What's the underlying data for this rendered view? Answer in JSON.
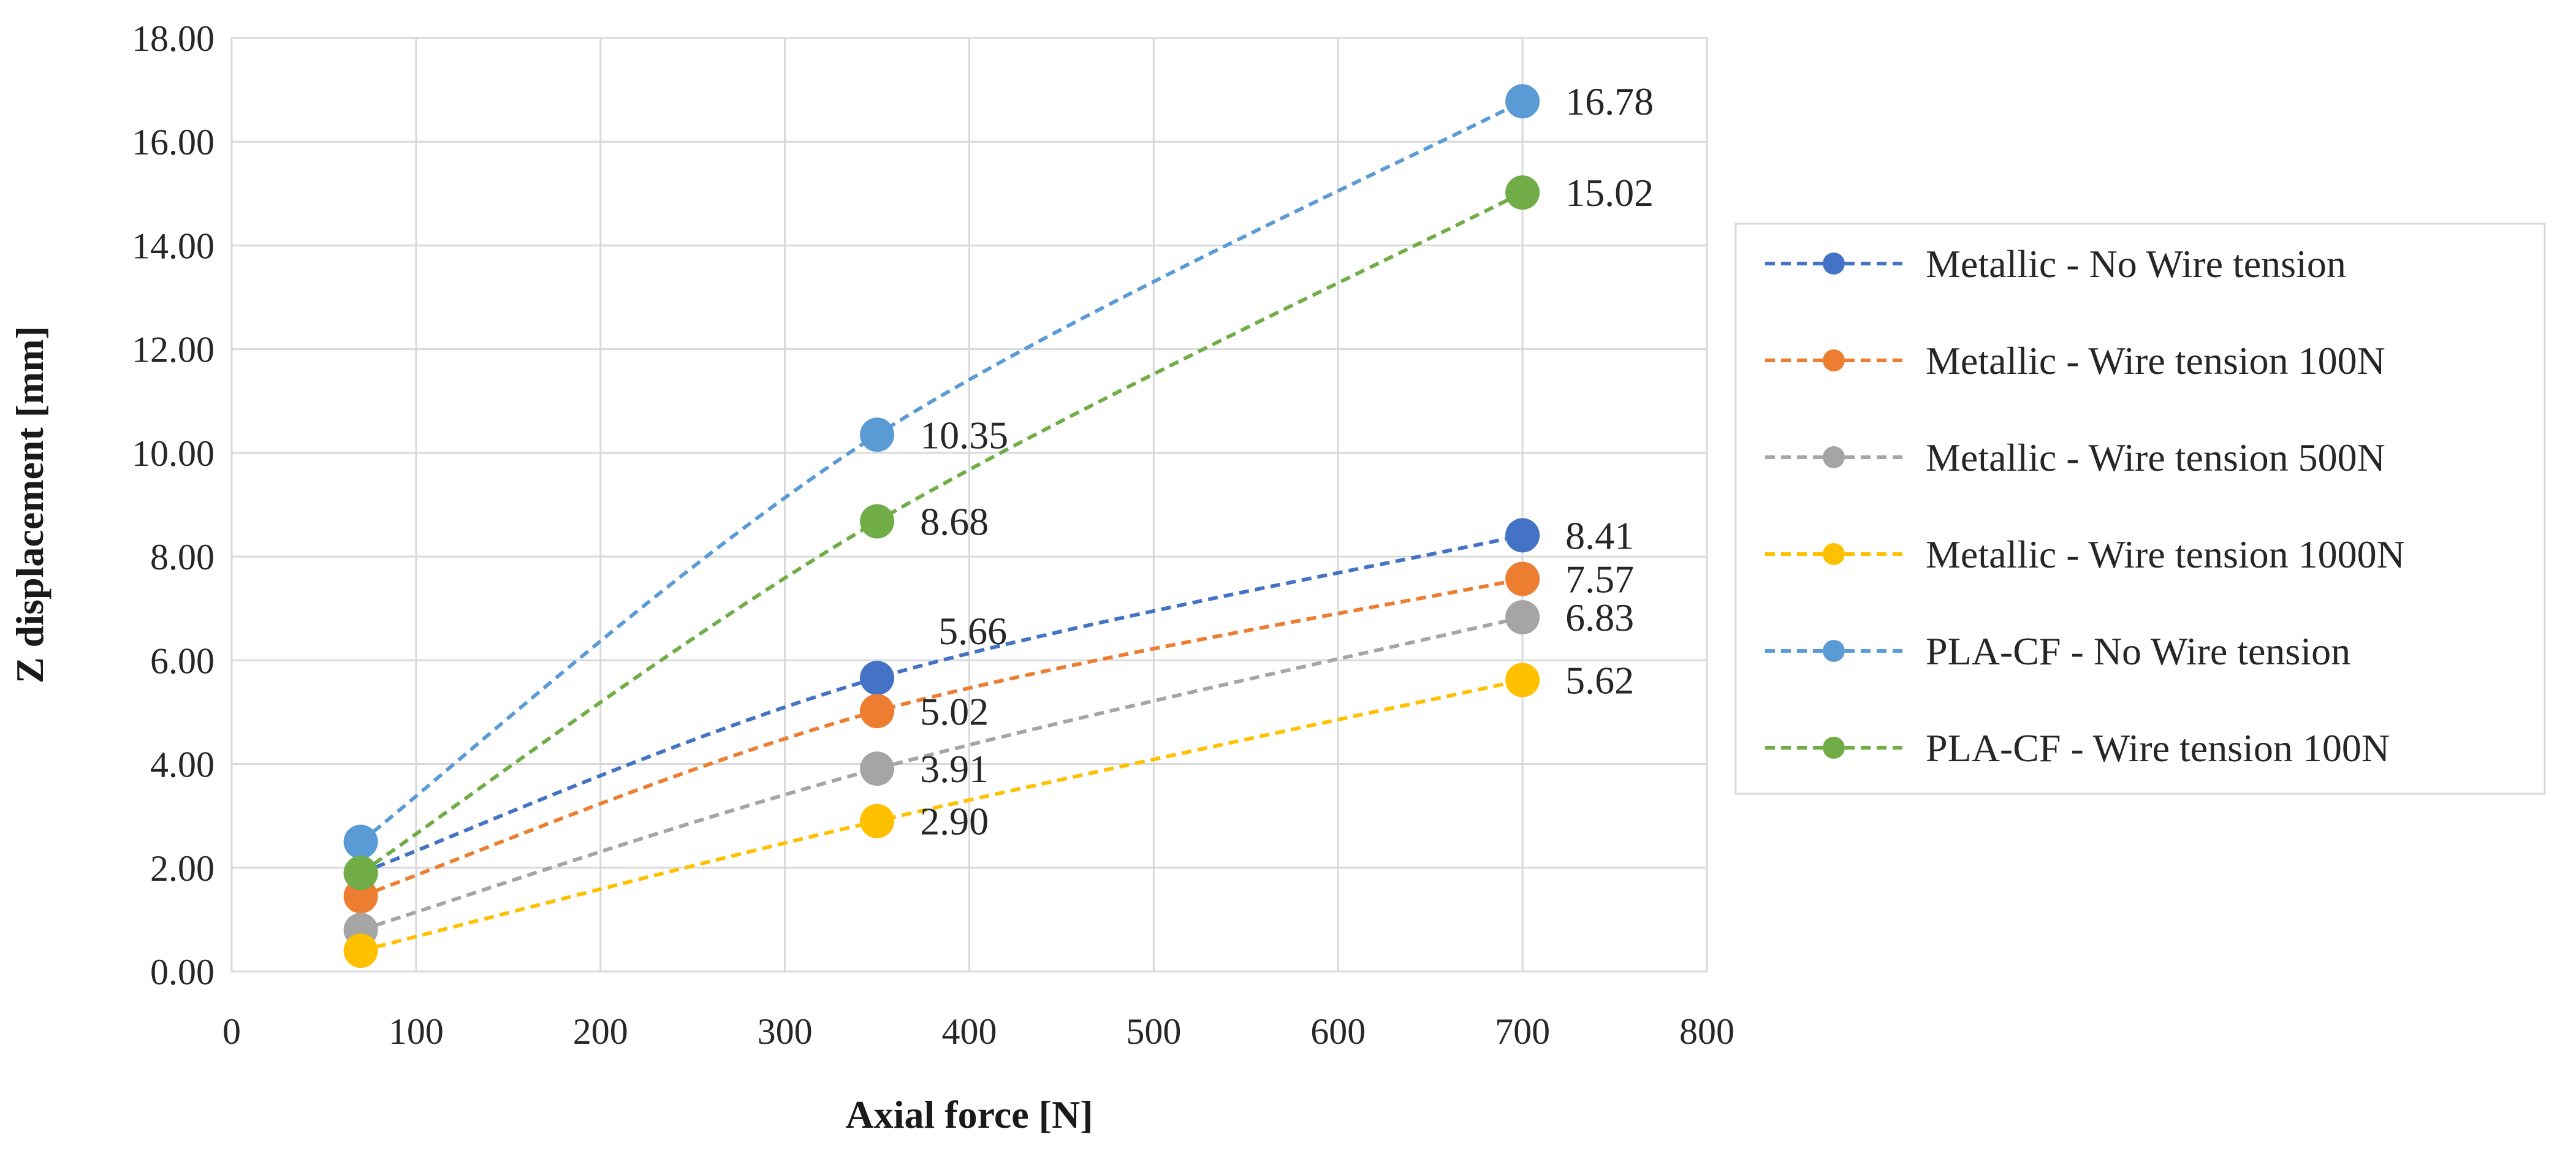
{
  "chart_data": {
    "type": "line",
    "title": "",
    "xlabel": "Axial force [N]",
    "ylabel": "Z displacement [mm]",
    "xlim": [
      0,
      800
    ],
    "ylim": [
      0,
      18
    ],
    "xticks": [
      0,
      100,
      200,
      300,
      400,
      500,
      600,
      700,
      800
    ],
    "yticks": [
      0,
      2,
      4,
      6,
      8,
      10,
      12,
      14,
      16,
      18
    ],
    "x_tick_labels": [
      "0",
      "100",
      "200",
      "300",
      "400",
      "500",
      "600",
      "700",
      "800"
    ],
    "y_tick_labels": [
      "0.00",
      "2.00",
      "4.00",
      "6.00",
      "8.00",
      "10.00",
      "12.00",
      "14.00",
      "16.00",
      "18.00"
    ],
    "grid": true,
    "legend_position": "right",
    "x": [
      70,
      350,
      700
    ],
    "series": [
      {
        "name": "Metallic - No Wire tension",
        "color": "#4472C4",
        "values": [
          1.9,
          5.66,
          8.41
        ],
        "labels": [
          "",
          "5.66",
          "8.41"
        ]
      },
      {
        "name": "Metallic - Wire tension 100N",
        "color": "#ED7D31",
        "values": [
          1.45,
          5.02,
          7.57
        ],
        "labels": [
          "",
          "5.02",
          "7.57"
        ]
      },
      {
        "name": "Metallic - Wire tension 500N",
        "color": "#A5A5A5",
        "values": [
          0.8,
          3.91,
          6.83
        ],
        "labels": [
          "",
          "3.91",
          "6.83"
        ]
      },
      {
        "name": "Metallic - Wire tension 1000N",
        "color": "#FFC000",
        "values": [
          0.4,
          2.9,
          5.62
        ],
        "labels": [
          "",
          "2.90",
          "5.62"
        ]
      },
      {
        "name": "PLA-CF - No Wire tension",
        "color": "#5B9BD5",
        "values": [
          2.5,
          10.35,
          16.78
        ],
        "labels": [
          "",
          "10.35",
          "16.78"
        ]
      },
      {
        "name": "PLA-CF - Wire tension 100N",
        "color": "#70AD47",
        "values": [
          1.9,
          8.68,
          15.02
        ],
        "labels": [
          "",
          "8.68",
          "15.02"
        ]
      }
    ]
  }
}
